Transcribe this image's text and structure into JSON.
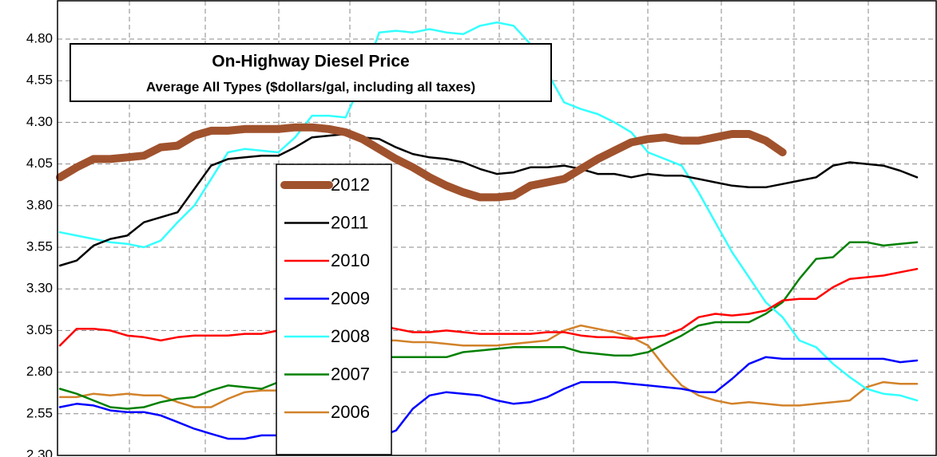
{
  "chart_data": {
    "type": "line",
    "title": "On-Highway Diesel Price",
    "subtitle": "Average All Types ($dollars/gal, including all taxes)",
    "categories": [
      null,
      null,
      null,
      null,
      null,
      null,
      null,
      null,
      null,
      null,
      null,
      null,
      null,
      null,
      null,
      null,
      null,
      null,
      null,
      null,
      null,
      null,
      null,
      null,
      null,
      null,
      null,
      null,
      null,
      null,
      null,
      null,
      null,
      null,
      null,
      null,
      null,
      null,
      null,
      null,
      null,
      null,
      null,
      null,
      null,
      null,
      null,
      null,
      null,
      null,
      null,
      null
    ],
    "ylim": [
      2.3,
      5.03
    ],
    "yticks": [
      {
        "value": 2.3,
        "label": "2.30"
      },
      {
        "value": 2.55,
        "label": "2.55"
      },
      {
        "value": 2.8,
        "label": "2.80"
      },
      {
        "value": 3.05,
        "label": "3.05"
      },
      {
        "value": 3.3,
        "label": "3.30"
      },
      {
        "value": 3.55,
        "label": "3.55"
      },
      {
        "value": 3.8,
        "label": "3.80"
      },
      {
        "value": 4.05,
        "label": "4.05"
      },
      {
        "value": 4.3,
        "label": "4.30"
      },
      {
        "value": 4.55,
        "label": "4.55"
      },
      {
        "value": 4.8,
        "label": "4.80"
      }
    ],
    "grid": true,
    "series": [
      {
        "name": "2012",
        "color": "#a0522d",
        "values": [
          3.97,
          4.03,
          4.08,
          4.08,
          4.09,
          4.1,
          4.15,
          4.16,
          4.22,
          4.25,
          4.25,
          4.26,
          4.26,
          4.26,
          4.27,
          4.27,
          4.26,
          4.24,
          4.2,
          4.14,
          4.08,
          4.03,
          3.97,
          3.92,
          3.88,
          3.85,
          3.85,
          3.86,
          3.92,
          3.94,
          3.96,
          4.02,
          4.08,
          4.13,
          4.18,
          4.2,
          4.21,
          4.19,
          4.19,
          4.21,
          4.23,
          4.23,
          4.19,
          4.12,
          null,
          null,
          null,
          null,
          null,
          null,
          null,
          null
        ]
      },
      {
        "name": "2011",
        "color": "#000000",
        "values": [
          3.44,
          3.47,
          3.56,
          3.6,
          3.62,
          3.7,
          3.73,
          3.76,
          3.9,
          4.04,
          4.08,
          4.09,
          4.1,
          4.1,
          4.15,
          4.21,
          4.22,
          4.23,
          4.21,
          4.2,
          4.15,
          4.11,
          4.09,
          4.08,
          4.06,
          4.02,
          3.99,
          4.0,
          4.03,
          4.03,
          4.04,
          4.02,
          3.99,
          3.99,
          3.97,
          3.99,
          3.98,
          3.98,
          3.96,
          3.94,
          3.92,
          3.91,
          3.91,
          3.93,
          3.95,
          3.97,
          4.04,
          4.06,
          4.05,
          4.04,
          4.01,
          3.97
        ]
      },
      {
        "name": "2010",
        "color": "#ff0000",
        "values": [
          2.96,
          3.06,
          3.06,
          3.05,
          3.02,
          3.01,
          2.99,
          3.01,
          3.02,
          3.02,
          3.02,
          3.03,
          3.03,
          3.05,
          3.07,
          3.11,
          3.15,
          3.16,
          3.12,
          3.08,
          3.06,
          3.04,
          3.04,
          3.05,
          3.04,
          3.03,
          3.03,
          3.03,
          3.03,
          3.04,
          3.04,
          3.02,
          3.01,
          3.01,
          3.0,
          3.01,
          3.02,
          3.06,
          3.13,
          3.15,
          3.14,
          3.15,
          3.17,
          3.23,
          3.24,
          3.24,
          3.31,
          3.36,
          3.37,
          3.38,
          3.4,
          3.42
        ]
      },
      {
        "name": "2009",
        "color": "#0000ff",
        "values": [
          2.59,
          2.61,
          2.6,
          2.57,
          2.56,
          2.56,
          2.54,
          2.5,
          2.46,
          2.43,
          2.4,
          2.4,
          2.42,
          2.42,
          2.41,
          2.4,
          2.39,
          2.4,
          2.41,
          2.41,
          2.45,
          2.58,
          2.66,
          2.68,
          2.67,
          2.66,
          2.63,
          2.61,
          2.62,
          2.65,
          2.7,
          2.74,
          2.74,
          2.74,
          2.73,
          2.72,
          2.71,
          2.7,
          2.68,
          2.68,
          2.76,
          2.85,
          2.89,
          2.88,
          2.88,
          2.88,
          2.88,
          2.88,
          2.88,
          2.88,
          2.86,
          2.87
        ]
      },
      {
        "name": "2008",
        "color": "#33ffff",
        "values": [
          3.64,
          3.62,
          3.6,
          3.58,
          3.57,
          3.55,
          3.59,
          3.7,
          3.8,
          3.96,
          4.12,
          4.14,
          4.13,
          4.12,
          4.21,
          4.34,
          4.34,
          4.33,
          4.55,
          4.84,
          4.85,
          4.84,
          4.86,
          4.84,
          4.83,
          4.88,
          4.9,
          4.88,
          4.77,
          4.6,
          4.42,
          4.38,
          4.35,
          4.3,
          4.24,
          4.12,
          4.08,
          4.04,
          3.88,
          3.7,
          3.52,
          3.37,
          3.22,
          3.13,
          2.99,
          2.95,
          2.85,
          2.77,
          2.7,
          2.67,
          2.66,
          2.63
        ]
      },
      {
        "name": "2007",
        "color": "#008000",
        "values": [
          2.7,
          2.67,
          2.63,
          2.59,
          2.58,
          2.59,
          2.62,
          2.64,
          2.65,
          2.69,
          2.72,
          2.71,
          2.7,
          2.74,
          2.8,
          2.84,
          2.86,
          2.88,
          2.88,
          2.89,
          2.89,
          2.89,
          2.89,
          2.89,
          2.92,
          2.93,
          2.94,
          2.95,
          2.95,
          2.95,
          2.95,
          2.92,
          2.91,
          2.9,
          2.9,
          2.92,
          2.97,
          3.02,
          3.08,
          3.1,
          3.1,
          3.1,
          3.15,
          3.22,
          3.36,
          3.48,
          3.49,
          3.58,
          3.58,
          3.56,
          3.57,
          3.58
        ]
      },
      {
        "name": "2006",
        "color": "#d2822a",
        "values": [
          2.65,
          2.65,
          2.67,
          2.66,
          2.67,
          2.66,
          2.66,
          2.62,
          2.59,
          2.59,
          2.64,
          2.68,
          2.69,
          2.69,
          2.75,
          2.85,
          2.92,
          2.96,
          2.98,
          2.99,
          2.99,
          2.98,
          2.98,
          2.97,
          2.96,
          2.96,
          2.96,
          2.97,
          2.98,
          2.99,
          3.05,
          3.08,
          3.06,
          3.04,
          3.01,
          2.96,
          2.83,
          2.72,
          2.66,
          2.63,
          2.61,
          2.62,
          2.61,
          2.6,
          2.6,
          2.61,
          2.62,
          2.63,
          2.71,
          2.74,
          2.73,
          2.73
        ]
      }
    ]
  }
}
